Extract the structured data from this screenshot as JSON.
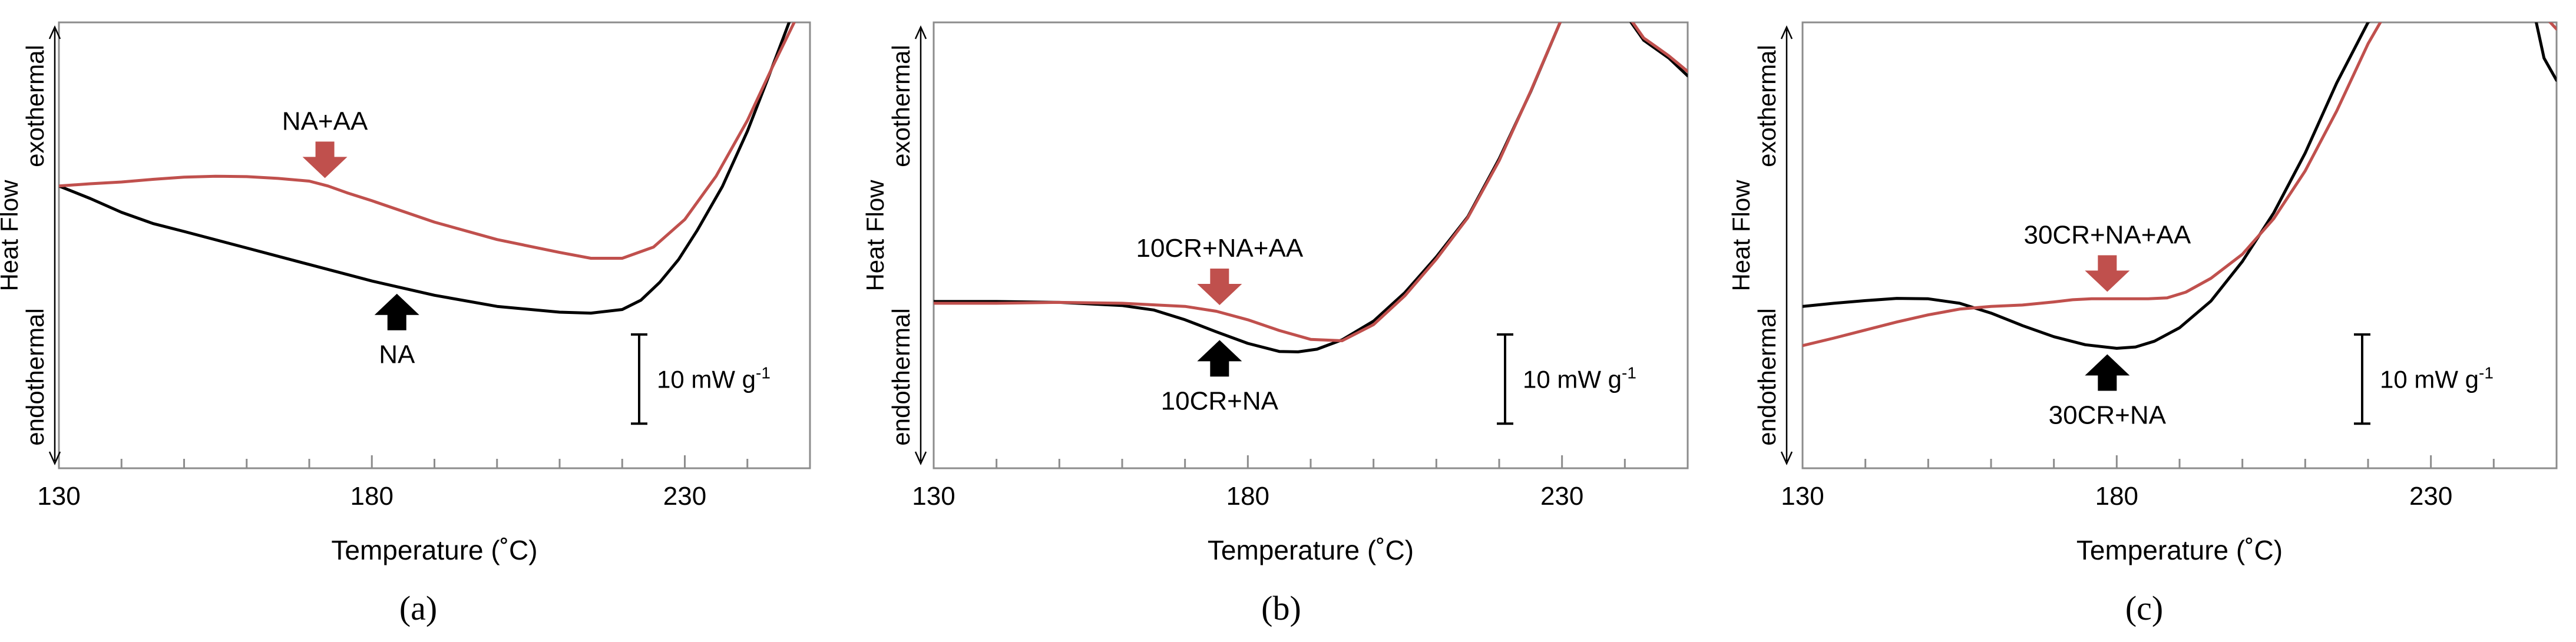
{
  "chart_data": [
    {
      "type": "line",
      "panel_label": "(a)",
      "xlabel": "Temperature (˚C)",
      "ylabel": "Heat Flow",
      "y_top_label": "exothermal",
      "y_bottom_label": "endothermal",
      "x_ticks": [
        "130",
        "180",
        "230"
      ],
      "xlim": [
        130,
        250
      ],
      "ylim": [
        0,
        100
      ],
      "scale_bar": {
        "label": "10 mW g",
        "superscript": "-1",
        "span": [
          10,
          30
        ]
      },
      "series": [
        {
          "name": "NA",
          "color": "#000000",
          "x": [
            130,
            135,
            140,
            145,
            150,
            160,
            170,
            180,
            190,
            200,
            210,
            215,
            220,
            223,
            226,
            229,
            232,
            236,
            240,
            243,
            246,
            248
          ],
          "y": [
            63.3,
            60.5,
            57.4,
            54.9,
            53.1,
            49.4,
            45.7,
            42.0,
            38.8,
            36.3,
            35.0,
            34.8,
            35.6,
            37.7,
            41.7,
            46.8,
            53.4,
            63.2,
            75.6,
            86.4,
            97.5,
            105
          ]
        },
        {
          "name": "NA+AA",
          "color": "#c0504d",
          "x": [
            130,
            135,
            140,
            145,
            150,
            155,
            160,
            165,
            170,
            173,
            176,
            180,
            190,
            200,
            210,
            215,
            220,
            225,
            230,
            235,
            240,
            244,
            248,
            251
          ],
          "y": [
            63.3,
            63.8,
            64.2,
            64.8,
            65.3,
            65.5,
            65.4,
            65.0,
            64.4,
            63.3,
            61.8,
            60.0,
            55.2,
            51.3,
            48.4,
            47.1,
            47.1,
            49.6,
            55.8,
            65.5,
            78.0,
            90.0,
            101.5,
            105
          ]
        }
      ],
      "annotations": [
        {
          "text": "NA+AA",
          "series": "NA+AA",
          "x": 172.5,
          "direction": "down"
        },
        {
          "text": "NA",
          "series": "NA",
          "x": 184,
          "direction": "up"
        }
      ]
    },
    {
      "type": "line",
      "panel_label": "(b)",
      "xlabel": "Temperature (˚C)",
      "ylabel": "Heat Flow",
      "y_top_label": "exothermal",
      "y_bottom_label": "endothermal",
      "x_ticks": [
        "130",
        "180",
        "230"
      ],
      "xlim": [
        130,
        250
      ],
      "ylim": [
        0,
        100
      ],
      "scale_bar": {
        "label": "10 mW g",
        "superscript": "-1",
        "span": [
          10,
          30
        ]
      },
      "series": [
        {
          "name": "10CR+NA",
          "color": "#000000",
          "x": [
            130,
            140,
            150,
            160,
            165,
            170,
            175,
            180,
            185,
            188,
            191,
            195,
            200,
            205,
            210,
            215,
            220,
            225,
            230,
            235,
            239,
            241,
            243,
            245,
            247,
            250
          ],
          "y": [
            37.4,
            37.4,
            37.2,
            36.5,
            35.5,
            33.3,
            30.6,
            28.0,
            26.2,
            26.1,
            26.7,
            28.8,
            33.0,
            39.4,
            47.4,
            56.4,
            69.4,
            84.4,
            101.0,
            105,
            105,
            100.0,
            96.0,
            94.0,
            92.0,
            88.0
          ]
        },
        {
          "name": "10CR+NA+AA",
          "color": "#c0504d",
          "x": [
            130,
            140,
            150,
            160,
            170,
            175,
            180,
            185,
            190,
            195,
            200,
            205,
            210,
            215,
            220,
            225,
            230,
            234,
            238,
            241,
            243,
            245,
            247,
            250
          ],
          "y": [
            37.0,
            37.0,
            37.2,
            37.0,
            36.3,
            35.2,
            33.3,
            30.9,
            28.9,
            28.6,
            32.2,
            38.7,
            46.9,
            56.2,
            69.0,
            84.5,
            101.0,
            105,
            105,
            100.5,
            96.5,
            94.5,
            92.5,
            89.0
          ]
        }
      ],
      "annotations": [
        {
          "text": "10CR+NA+AA",
          "series": "10CR+NA+AA",
          "x": 175.5,
          "direction": "down"
        },
        {
          "text": "10CR+NA",
          "series": "10CR+NA",
          "x": 175.5,
          "direction": "up"
        }
      ]
    },
    {
      "type": "line",
      "panel_label": "(c)",
      "xlabel": "Temperature (˚C)",
      "ylabel": "Heat Flow",
      "y_top_label": "exothermal",
      "y_bottom_label": "endothermal",
      "x_ticks": [
        "130",
        "180",
        "230"
      ],
      "xlim": [
        130,
        250
      ],
      "ylim": [
        0,
        100
      ],
      "scale_bar": {
        "label": "10 mW g",
        "superscript": "-1",
        "span": [
          10,
          30
        ]
      },
      "series": [
        {
          "name": "30CR+NA",
          "color": "#000000",
          "x": [
            130,
            135,
            140,
            145,
            150,
            155,
            160,
            165,
            170,
            175,
            180,
            183,
            186,
            190,
            195,
            200,
            205,
            210,
            215,
            220,
            224,
            226,
            228,
            232,
            236,
            240,
            244,
            246,
            248,
            250
          ],
          "y": [
            36.3,
            37.0,
            37.6,
            38.1,
            38.0,
            37.0,
            34.8,
            32.0,
            29.5,
            27.7,
            26.9,
            27.2,
            28.5,
            31.5,
            37.5,
            46.4,
            57.3,
            70.7,
            86.4,
            100.0,
            105,
            105,
            105,
            105,
            105,
            105,
            105,
            105,
            92.0,
            87.0
          ]
        },
        {
          "name": "30CR+NA+AA",
          "color": "#c0504d",
          "x": [
            130,
            135,
            140,
            145,
            150,
            155,
            160,
            165,
            170,
            173,
            176,
            180,
            185,
            188,
            191,
            195,
            200,
            205,
            210,
            215,
            220,
            224,
            230,
            240,
            246,
            248,
            250
          ],
          "y": [
            27.5,
            29.2,
            31.0,
            32.8,
            34.4,
            35.7,
            36.3,
            36.6,
            37.3,
            37.8,
            38.0,
            38.0,
            38.0,
            38.2,
            39.5,
            42.6,
            48.0,
            56.0,
            66.7,
            80.1,
            95.2,
            105,
            105,
            105,
            105,
            101.5,
            98.5
          ]
        }
      ],
      "annotations": [
        {
          "text": "30CR+NA+AA",
          "series": "30CR+NA+AA",
          "x": 178.5,
          "direction": "down"
        },
        {
          "text": "30CR+NA",
          "series": "30CR+NA",
          "x": 178.5,
          "direction": "up"
        }
      ]
    }
  ]
}
